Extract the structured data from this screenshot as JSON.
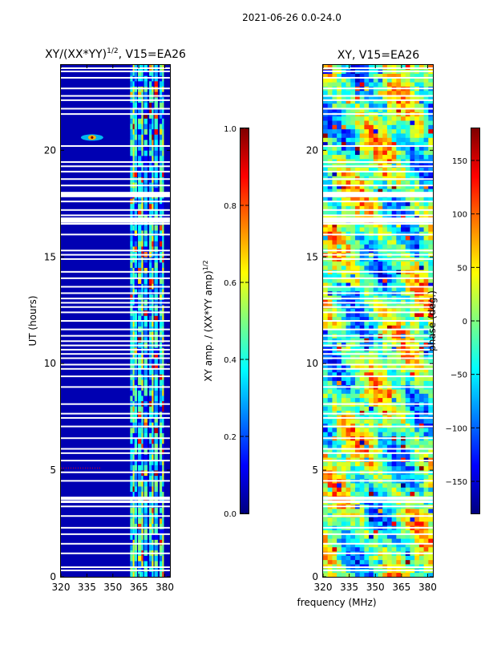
{
  "figure_title": "2021-06-26 0.0-24.0",
  "colors": {
    "heat_bg": "#00008f",
    "white": "#ffffff",
    "jet": [
      "#00007f",
      "#0000ff",
      "#007fff",
      "#00ffff",
      "#7fff7f",
      "#ffff00",
      "#ff7f00",
      "#ff0000",
      "#7f0000"
    ]
  },
  "chart_data": [
    {
      "type": "heatmap",
      "title_main": "XY/(XX*YY)",
      "title_sup": "1/2",
      "title_tail": ", V15=EA26",
      "ylabel": "UT (hours)",
      "xlabel": "",
      "x_ticks": [
        "320",
        "335",
        "350",
        "365",
        "380"
      ],
      "x_tick_values": [
        320,
        335,
        350,
        365,
        380
      ],
      "y_ticks": [
        "0",
        "5",
        "10",
        "15",
        "20"
      ],
      "y_tick_values": [
        0,
        5,
        10,
        15,
        20
      ],
      "xlim": [
        320,
        383
      ],
      "ylim": [
        0,
        24
      ],
      "colorbar": {
        "label": "XY amp. / (XX*YY amp)",
        "label_sup": "1/2",
        "range": [
          0.0,
          1.0
        ],
        "ticks": [
          "0.0",
          "0.2",
          "0.4",
          "0.6",
          "0.8",
          "1.0"
        ],
        "tick_values": [
          0.0,
          0.2,
          0.4,
          0.6,
          0.8,
          1.0
        ]
      },
      "features": {
        "background_value": 0.05,
        "bright_channels_mhz": [
          [
            360.0,
            361.5
          ],
          [
            361.5,
            362.5
          ],
          [
            362.5,
            364.0
          ],
          [
            364.5,
            366.5
          ],
          [
            366.5,
            367.5
          ],
          [
            368.0,
            370.0
          ],
          [
            371.0,
            372.5
          ],
          [
            372.5,
            373.5
          ],
          [
            374.0,
            376.0
          ],
          [
            377.0,
            378.5
          ],
          [
            378.5,
            379.5
          ]
        ],
        "hot_spot": {
          "freq_mhz": 338,
          "ut_hours": 20.6,
          "value": 1.0
        },
        "rfi_line_ut_hours": 5.1
      }
    },
    {
      "type": "heatmap",
      "title_main": "XY, V15=EA26",
      "ylabel": "",
      "xlabel": "frequency (MHz)",
      "x_ticks": [
        "320",
        "335",
        "350",
        "365",
        "380"
      ],
      "x_tick_values": [
        320,
        335,
        350,
        365,
        380
      ],
      "y_ticks": [
        "0",
        "5",
        "10",
        "15",
        "20"
      ],
      "y_tick_values": [
        0,
        5,
        10,
        15,
        20
      ],
      "xlim": [
        320,
        383
      ],
      "ylim": [
        0,
        24
      ],
      "colorbar": {
        "label": "phase (deg.)",
        "range": [
          -180,
          180
        ],
        "ticks": [
          "−150",
          "−100",
          "−50",
          "0",
          "50",
          "100",
          "150"
        ],
        "tick_values": [
          -150,
          -100,
          -50,
          0,
          50,
          100,
          150
        ]
      }
    }
  ],
  "flagged_ut_hours": [
    0.3,
    0.45,
    1.1,
    1.55,
    2.0,
    2.3,
    2.85,
    3.3,
    3.5,
    3.55,
    3.65,
    3.72,
    4.5,
    4.9,
    5.45,
    5.8,
    6.0,
    6.5,
    7.05,
    7.45,
    7.65,
    8.1,
    8.9,
    9.4,
    9.75,
    9.95,
    10.25,
    10.45,
    10.65,
    10.85,
    11.05,
    11.3,
    11.6,
    12.0,
    12.4,
    12.65,
    12.85,
    13.05,
    13.3,
    13.6,
    14.0,
    14.3,
    14.9,
    15.1,
    15.3,
    16.05,
    16.55,
    16.75,
    16.95,
    17.2,
    17.6,
    17.85,
    18.0,
    18.35,
    18.65,
    19.0,
    19.25,
    19.45,
    20.2,
    21.7,
    21.95,
    22.35,
    22.55,
    22.9,
    23.4,
    23.7,
    23.85
  ],
  "flagged_ut_wide": [
    [
      16.6,
      16.85
    ],
    [
      17.8,
      18.05
    ]
  ]
}
